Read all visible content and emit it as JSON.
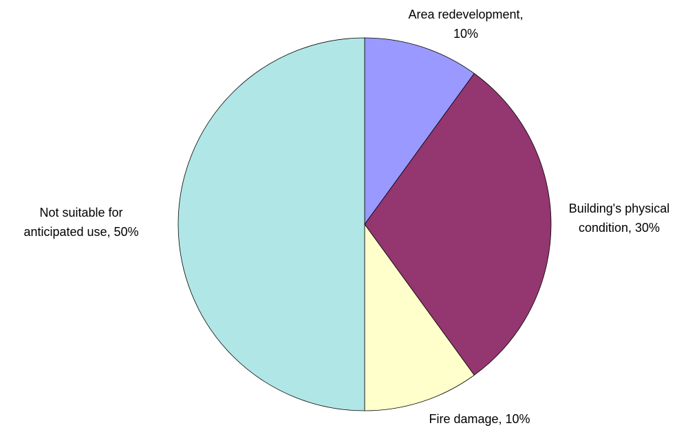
{
  "chart_data": {
    "type": "pie",
    "values": [
      10,
      30,
      10,
      50
    ],
    "labels": [
      [
        "Area redevelopment,",
        "10%"
      ],
      [
        "Building's physical",
        "condition, 30%"
      ],
      [
        "Fire damage, 10%"
      ],
      [
        "Not suitable for",
        "anticipated use, 50%"
      ]
    ],
    "colors": [
      "#9999ff",
      "#943670",
      "#ffffcc",
      "#b0e6e6"
    ]
  }
}
